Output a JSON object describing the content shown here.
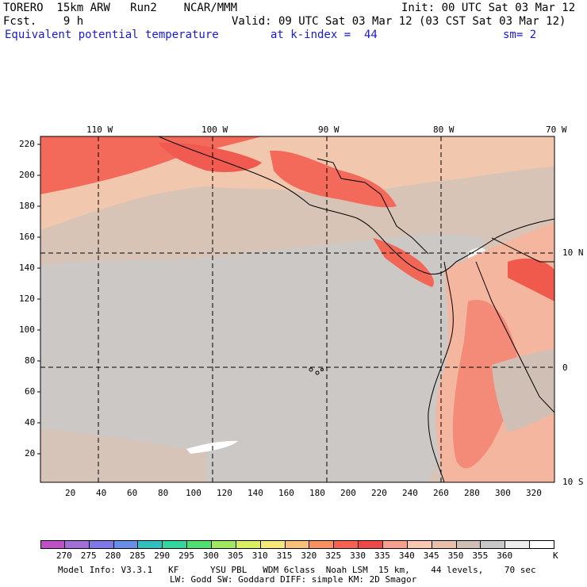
{
  "header": {
    "model": "TORERO  15km ARW   Run2    NCAR/MMM",
    "init": "Init: 00 UTC Sat 03 Mar 12",
    "fcst": "Fcst.    9 h",
    "valid": "Valid: 09 UTC Sat 03 Mar 12 (03 CST Sat 03 Mar 12)",
    "field": "Equivalent potential temperature",
    "level": "at k-index =  44",
    "smooth": "sm= 2"
  },
  "map": {
    "lon_labels": [
      "110 W",
      "100 W",
      "90 W",
      "80 W",
      "70 W"
    ],
    "lat_labels": [
      "10 N",
      "0",
      "10 S"
    ],
    "y_ticks": [
      "220",
      "200",
      "180",
      "160",
      "140",
      "120",
      "100",
      "80",
      "60",
      "40",
      "20"
    ],
    "x_ticks": [
      "20",
      "40",
      "60",
      "80",
      "100",
      "120",
      "140",
      "160",
      "180",
      "200",
      "220",
      "240",
      "260",
      "280",
      "300",
      "320"
    ]
  },
  "colorbar": {
    "labels": [
      "270",
      "275",
      "280",
      "285",
      "290",
      "295",
      "300",
      "305",
      "310",
      "315",
      "320",
      "325",
      "330",
      "335",
      "340",
      "345",
      "350",
      "355",
      "360"
    ],
    "unit": "K",
    "colors": [
      "#c050c8",
      "#a070d8",
      "#8078e8",
      "#6890e8",
      "#30c0c0",
      "#30d8a0",
      "#50e070",
      "#a0e860",
      "#d8f060",
      "#f8e878",
      "#f8c078",
      "#f89060",
      "#f86050",
      "#f04848",
      "#f8a090",
      "#f8c8b0",
      "#e8c0a8",
      "#d0bfb4",
      "#c8c8c8",
      "#ececec",
      "#ffffff"
    ]
  },
  "footer": {
    "line1": "Model Info: V3.3.1   KF      YSU PBL   WDM 6class  Noah LSM  15 km,    44 levels,    70 sec",
    "line2": "LW: Godd SW: Goddard DIFF: simple KM: 2D Smagor"
  }
}
